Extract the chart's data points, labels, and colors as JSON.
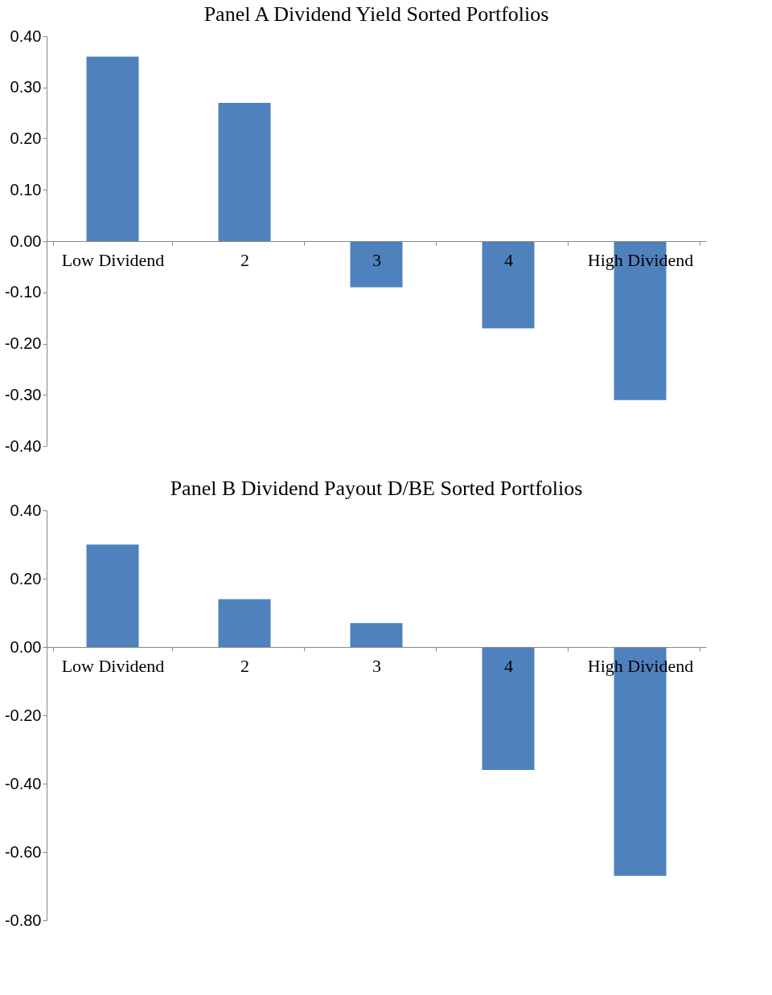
{
  "chart_data": [
    {
      "type": "bar",
      "title": "Panel A Dividend Yield Sorted Portfolios",
      "categories": [
        "Low Dividend",
        "2",
        "3",
        "4",
        "High Dividend"
      ],
      "values": [
        0.36,
        0.27,
        -0.09,
        -0.17,
        -0.31
      ],
      "color": "#4f81bd",
      "ylim": [
        -0.4,
        0.4
      ],
      "yticks": [
        {
          "value": -0.4,
          "label": "-0.40"
        },
        {
          "value": -0.3,
          "label": "-0.30"
        },
        {
          "value": -0.2,
          "label": "-0.20"
        },
        {
          "value": -0.1,
          "label": "-0.10"
        },
        {
          "value": 0,
          "label": "0.00"
        },
        {
          "value": 0.1,
          "label": "0.10"
        },
        {
          "value": 0.2,
          "label": "0.20"
        },
        {
          "value": 0.3,
          "label": "0.30"
        },
        {
          "value": 0.4,
          "label": "0.40"
        }
      ],
      "grid": false
    },
    {
      "type": "bar",
      "title": "Panel B Dividend Payout D/BE Sorted Portfolios",
      "categories": [
        "Low Dividend",
        "2",
        "3",
        "4",
        "High Dividend"
      ],
      "values": [
        0.3,
        0.14,
        0.07,
        -0.36,
        -0.67
      ],
      "color": "#4f81bd",
      "ylim": [
        -0.8,
        0.4
      ],
      "yticks": [
        {
          "value": -0.8,
          "label": "-0.80"
        },
        {
          "value": -0.6,
          "label": "-0.60"
        },
        {
          "value": -0.4,
          "label": "-0.40"
        },
        {
          "value": -0.2,
          "label": "-0.20"
        },
        {
          "value": 0,
          "label": "0.00"
        },
        {
          "value": 0.2,
          "label": "0.20"
        },
        {
          "value": 0.4,
          "label": "0.40"
        }
      ],
      "grid": false
    }
  ]
}
